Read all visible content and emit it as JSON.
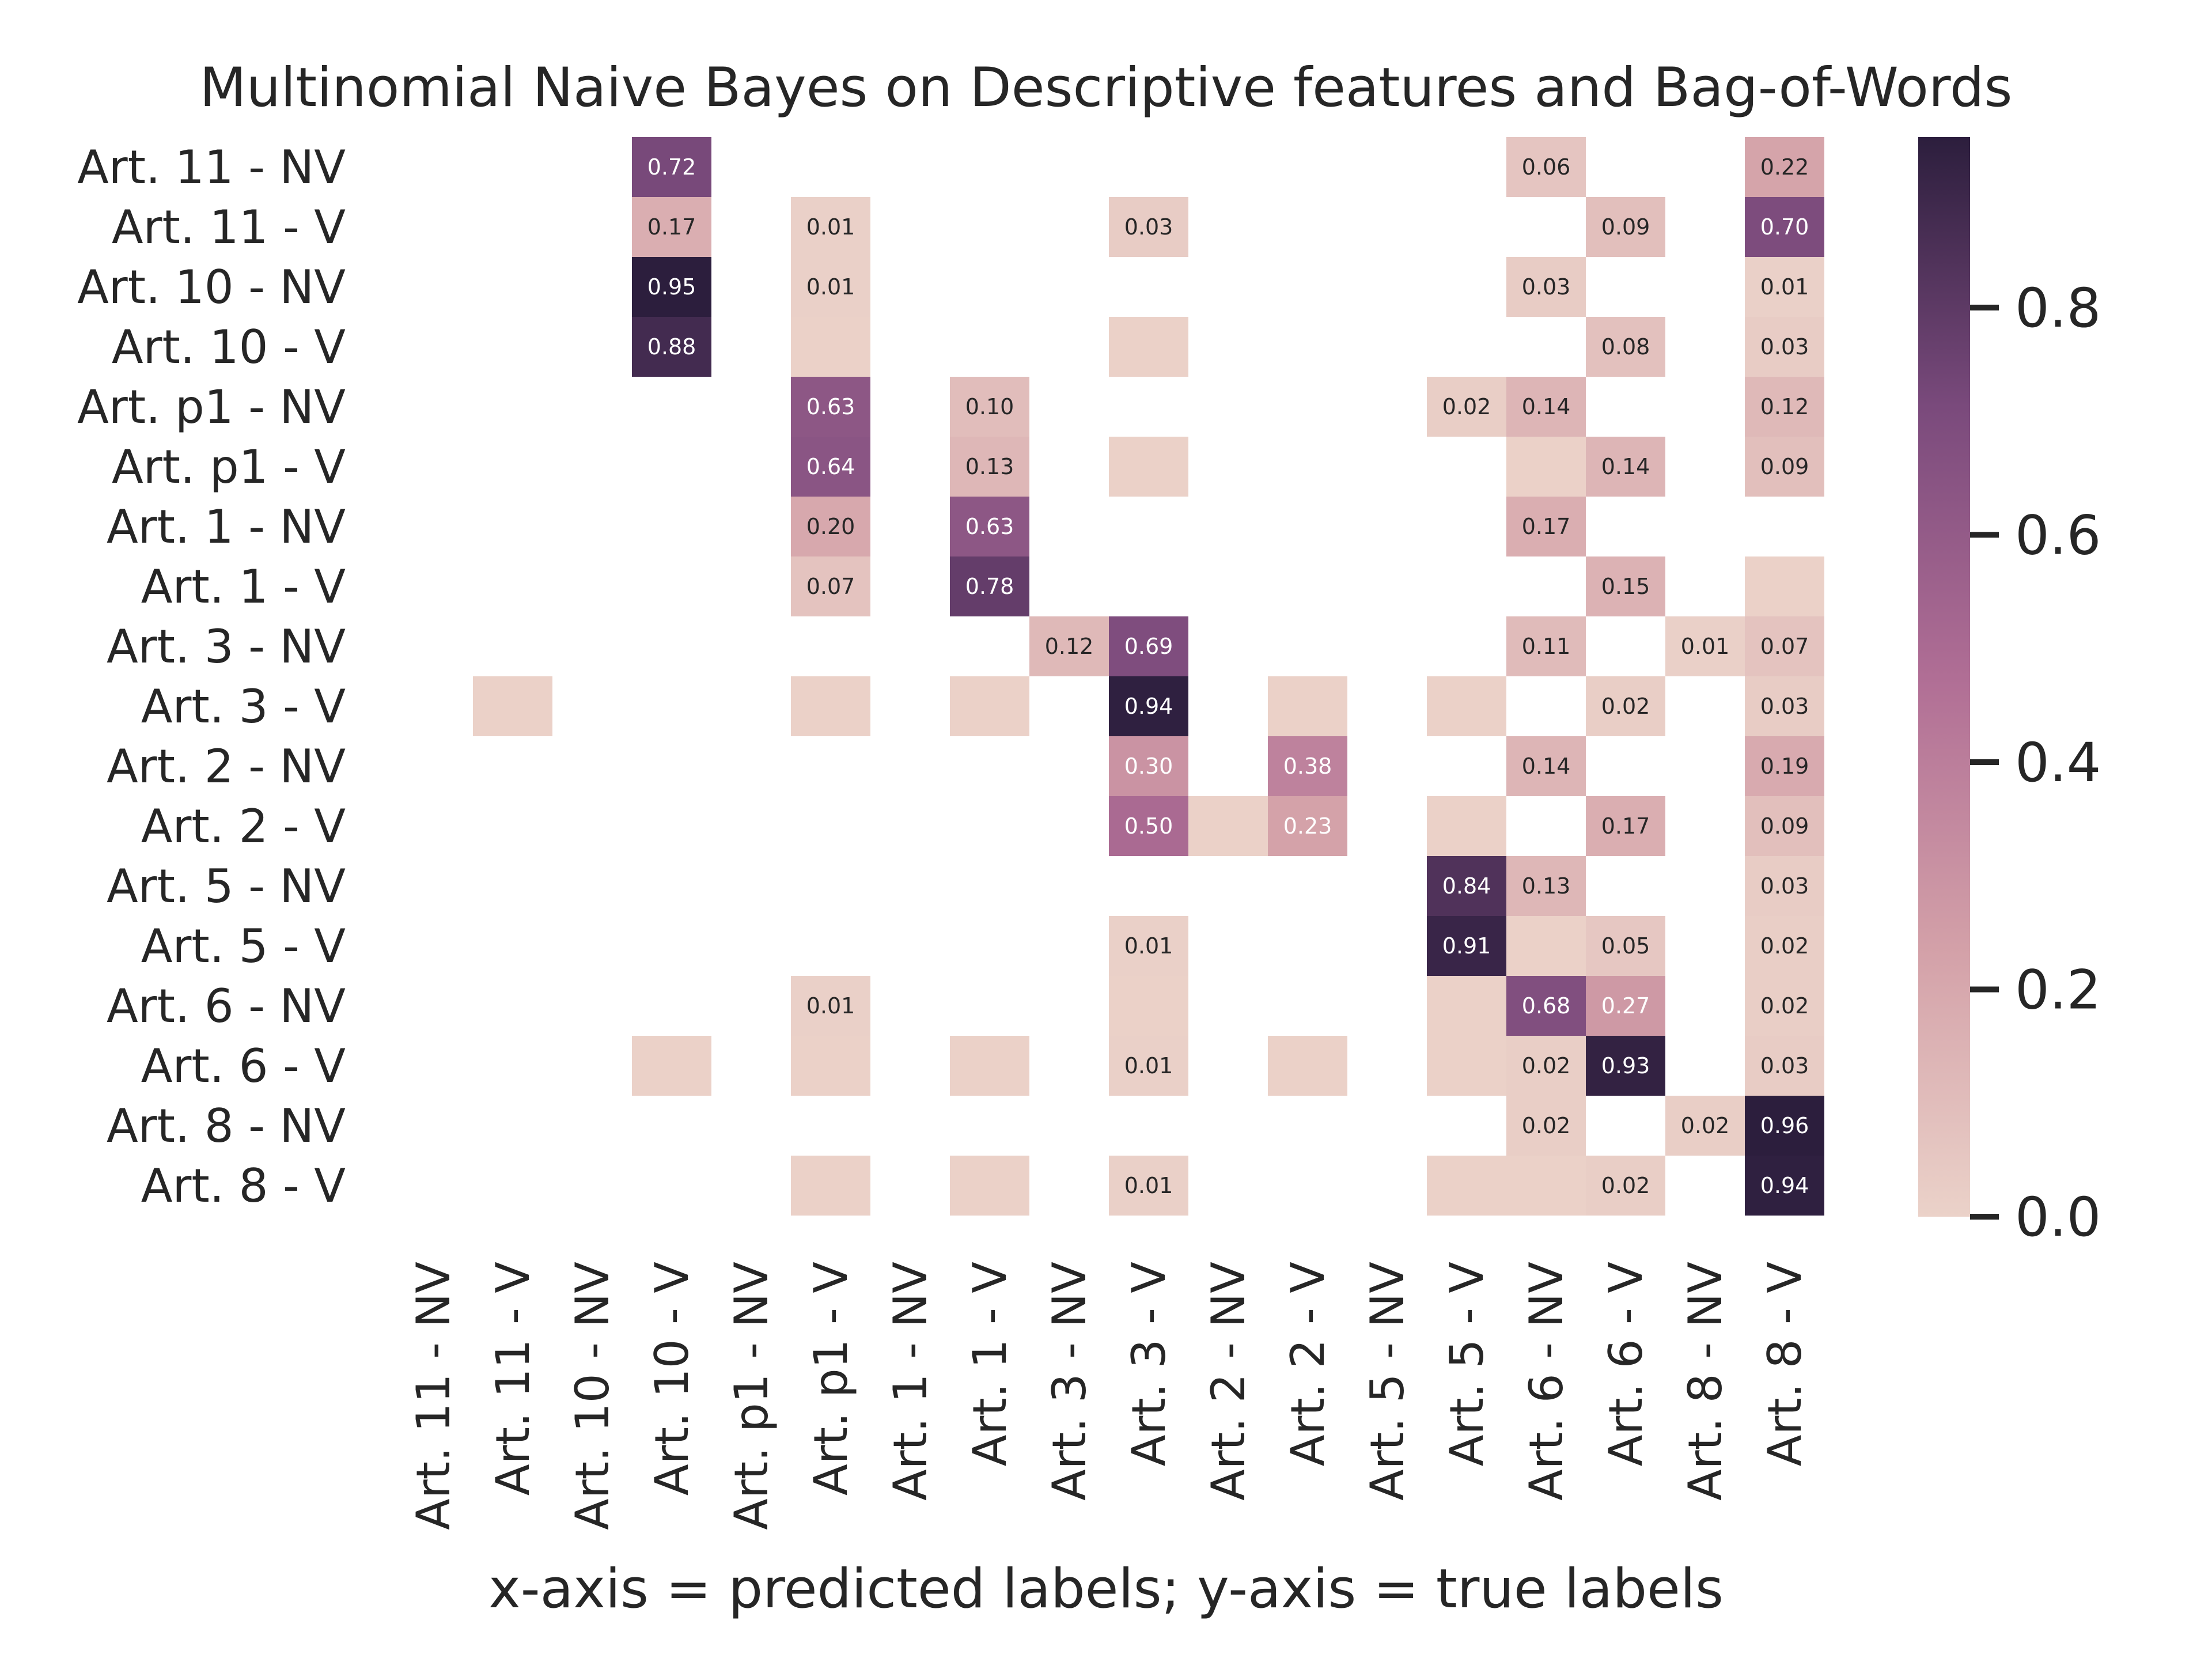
{
  "chart_data": {
    "type": "heatmap",
    "title": "Multinomial Naive Bayes on Descriptive features and Bag-of-Words",
    "xlabel": "x-axis = predicted labels; y-axis = true labels",
    "ylabel": "",
    "labels": [
      "Art. 11 - NV",
      "Art. 11 - V",
      "Art. 10 - NV",
      "Art. 10 - V",
      "Art. p1 - NV",
      "Art. p1 - V",
      "Art. 1 - NV",
      "Art. 1 - V",
      "Art. 3 - NV",
      "Art. 3 - V",
      "Art. 2 - NV",
      "Art. 2 - V",
      "Art. 5 - NV",
      "Art. 5 - V",
      "Art. 6 - NV",
      "Art. 6 - V",
      "Art. 8 - NV",
      "Art. 8 - V"
    ],
    "colorbar": {
      "range": [
        0,
        0.95
      ],
      "ticks": [
        "0.0",
        "0.2",
        "0.4",
        "0.6",
        "0.8"
      ]
    },
    "colormap": [
      "#ebd2c9",
      "#d3a0a8",
      "#b06e95",
      "#7a4a7c",
      "#2c1e3d"
    ],
    "cells": [
      {
        "row": 0,
        "col": 3,
        "value": 0.72,
        "label": "0.72"
      },
      {
        "row": 0,
        "col": 14,
        "value": 0.06,
        "label": "0.06"
      },
      {
        "row": 0,
        "col": 17,
        "value": 0.22,
        "label": "0.22"
      },
      {
        "row": 1,
        "col": 3,
        "value": 0.17,
        "label": "0.17"
      },
      {
        "row": 1,
        "col": 5,
        "value": 0.01,
        "label": "0.01"
      },
      {
        "row": 1,
        "col": 9,
        "value": 0.03,
        "label": "0.03"
      },
      {
        "row": 1,
        "col": 15,
        "value": 0.09,
        "label": "0.09"
      },
      {
        "row": 1,
        "col": 17,
        "value": 0.7,
        "label": "0.70"
      },
      {
        "row": 2,
        "col": 3,
        "value": 0.95,
        "label": "0.95"
      },
      {
        "row": 2,
        "col": 5,
        "value": 0.01,
        "label": "0.01"
      },
      {
        "row": 2,
        "col": 14,
        "value": 0.03,
        "label": "0.03"
      },
      {
        "row": 2,
        "col": 17,
        "value": 0.01,
        "label": "0.01"
      },
      {
        "row": 3,
        "col": 3,
        "value": 0.88,
        "label": "0.88"
      },
      {
        "row": 3,
        "col": 5,
        "value": 0.004,
        "label": ""
      },
      {
        "row": 3,
        "col": 9,
        "value": 0.004,
        "label": ""
      },
      {
        "row": 3,
        "col": 15,
        "value": 0.08,
        "label": "0.08"
      },
      {
        "row": 3,
        "col": 17,
        "value": 0.03,
        "label": "0.03"
      },
      {
        "row": 4,
        "col": 5,
        "value": 0.63,
        "label": "0.63"
      },
      {
        "row": 4,
        "col": 7,
        "value": 0.1,
        "label": "0.10"
      },
      {
        "row": 4,
        "col": 13,
        "value": 0.02,
        "label": "0.02"
      },
      {
        "row": 4,
        "col": 14,
        "value": 0.14,
        "label": "0.14"
      },
      {
        "row": 4,
        "col": 17,
        "value": 0.12,
        "label": "0.12"
      },
      {
        "row": 5,
        "col": 5,
        "value": 0.64,
        "label": "0.64"
      },
      {
        "row": 5,
        "col": 7,
        "value": 0.13,
        "label": "0.13"
      },
      {
        "row": 5,
        "col": 9,
        "value": 0.004,
        "label": ""
      },
      {
        "row": 5,
        "col": 14,
        "value": 0.004,
        "label": ""
      },
      {
        "row": 5,
        "col": 15,
        "value": 0.14,
        "label": "0.14"
      },
      {
        "row": 5,
        "col": 17,
        "value": 0.09,
        "label": "0.09"
      },
      {
        "row": 6,
        "col": 5,
        "value": 0.2,
        "label": "0.20"
      },
      {
        "row": 6,
        "col": 7,
        "value": 0.63,
        "label": "0.63"
      },
      {
        "row": 6,
        "col": 14,
        "value": 0.17,
        "label": "0.17"
      },
      {
        "row": 7,
        "col": 5,
        "value": 0.07,
        "label": "0.07"
      },
      {
        "row": 7,
        "col": 7,
        "value": 0.78,
        "label": "0.78"
      },
      {
        "row": 7,
        "col": 15,
        "value": 0.15,
        "label": "0.15"
      },
      {
        "row": 7,
        "col": 17,
        "value": 0.004,
        "label": ""
      },
      {
        "row": 8,
        "col": 8,
        "value": 0.12,
        "label": "0.12"
      },
      {
        "row": 8,
        "col": 9,
        "value": 0.69,
        "label": "0.69"
      },
      {
        "row": 8,
        "col": 14,
        "value": 0.11,
        "label": "0.11"
      },
      {
        "row": 8,
        "col": 16,
        "value": 0.01,
        "label": "0.01"
      },
      {
        "row": 8,
        "col": 17,
        "value": 0.07,
        "label": "0.07"
      },
      {
        "row": 9,
        "col": 1,
        "value": 0.004,
        "label": ""
      },
      {
        "row": 9,
        "col": 5,
        "value": 0.004,
        "label": ""
      },
      {
        "row": 9,
        "col": 7,
        "value": 0.004,
        "label": ""
      },
      {
        "row": 9,
        "col": 9,
        "value": 0.94,
        "label": "0.94"
      },
      {
        "row": 9,
        "col": 11,
        "value": 0.004,
        "label": ""
      },
      {
        "row": 9,
        "col": 13,
        "value": 0.004,
        "label": ""
      },
      {
        "row": 9,
        "col": 15,
        "value": 0.02,
        "label": "0.02"
      },
      {
        "row": 9,
        "col": 17,
        "value": 0.03,
        "label": "0.03"
      },
      {
        "row": 10,
        "col": 9,
        "value": 0.3,
        "label": "0.30"
      },
      {
        "row": 10,
        "col": 11,
        "value": 0.38,
        "label": "0.38"
      },
      {
        "row": 10,
        "col": 14,
        "value": 0.14,
        "label": "0.14"
      },
      {
        "row": 10,
        "col": 17,
        "value": 0.19,
        "label": "0.19"
      },
      {
        "row": 11,
        "col": 9,
        "value": 0.5,
        "label": "0.50"
      },
      {
        "row": 11,
        "col": 10,
        "value": 0.004,
        "label": ""
      },
      {
        "row": 11,
        "col": 11,
        "value": 0.23,
        "label": "0.23"
      },
      {
        "row": 11,
        "col": 13,
        "value": 0.004,
        "label": ""
      },
      {
        "row": 11,
        "col": 15,
        "value": 0.17,
        "label": "0.17"
      },
      {
        "row": 11,
        "col": 17,
        "value": 0.09,
        "label": "0.09"
      },
      {
        "row": 12,
        "col": 13,
        "value": 0.84,
        "label": "0.84"
      },
      {
        "row": 12,
        "col": 14,
        "value": 0.13,
        "label": "0.13"
      },
      {
        "row": 12,
        "col": 17,
        "value": 0.03,
        "label": "0.03"
      },
      {
        "row": 13,
        "col": 9,
        "value": 0.01,
        "label": "0.01"
      },
      {
        "row": 13,
        "col": 13,
        "value": 0.91,
        "label": "0.91"
      },
      {
        "row": 13,
        "col": 14,
        "value": 0.004,
        "label": ""
      },
      {
        "row": 13,
        "col": 15,
        "value": 0.05,
        "label": "0.05"
      },
      {
        "row": 13,
        "col": 17,
        "value": 0.02,
        "label": "0.02"
      },
      {
        "row": 14,
        "col": 5,
        "value": 0.01,
        "label": "0.01"
      },
      {
        "row": 14,
        "col": 9,
        "value": 0.004,
        "label": ""
      },
      {
        "row": 14,
        "col": 13,
        "value": 0.004,
        "label": ""
      },
      {
        "row": 14,
        "col": 14,
        "value": 0.68,
        "label": "0.68"
      },
      {
        "row": 14,
        "col": 15,
        "value": 0.27,
        "label": "0.27"
      },
      {
        "row": 14,
        "col": 17,
        "value": 0.02,
        "label": "0.02"
      },
      {
        "row": 15,
        "col": 3,
        "value": 0.004,
        "label": ""
      },
      {
        "row": 15,
        "col": 5,
        "value": 0.004,
        "label": ""
      },
      {
        "row": 15,
        "col": 7,
        "value": 0.004,
        "label": ""
      },
      {
        "row": 15,
        "col": 9,
        "value": 0.01,
        "label": "0.01"
      },
      {
        "row": 15,
        "col": 11,
        "value": 0.004,
        "label": ""
      },
      {
        "row": 15,
        "col": 13,
        "value": 0.004,
        "label": ""
      },
      {
        "row": 15,
        "col": 14,
        "value": 0.02,
        "label": "0.02"
      },
      {
        "row": 15,
        "col": 15,
        "value": 0.93,
        "label": "0.93"
      },
      {
        "row": 15,
        "col": 17,
        "value": 0.03,
        "label": "0.03"
      },
      {
        "row": 16,
        "col": 14,
        "value": 0.02,
        "label": "0.02"
      },
      {
        "row": 16,
        "col": 16,
        "value": 0.02,
        "label": "0.02"
      },
      {
        "row": 16,
        "col": 17,
        "value": 0.96,
        "label": "0.96"
      },
      {
        "row": 17,
        "col": 5,
        "value": 0.004,
        "label": ""
      },
      {
        "row": 17,
        "col": 7,
        "value": 0.004,
        "label": ""
      },
      {
        "row": 17,
        "col": 9,
        "value": 0.01,
        "label": "0.01"
      },
      {
        "row": 17,
        "col": 13,
        "value": 0.004,
        "label": ""
      },
      {
        "row": 17,
        "col": 14,
        "value": 0.004,
        "label": ""
      },
      {
        "row": 17,
        "col": 15,
        "value": 0.02,
        "label": "0.02"
      },
      {
        "row": 17,
        "col": 17,
        "value": 0.94,
        "label": "0.94"
      }
    ]
  }
}
